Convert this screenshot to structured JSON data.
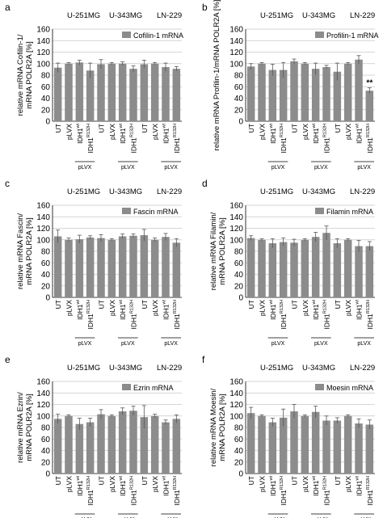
{
  "figure": {
    "cell_lines": [
      "U-251MG",
      "U-343MG",
      "LN-229"
    ],
    "group_label": "pLVX",
    "ylabel_line2": "mRNA POLR2A [%]",
    "categories": [
      {
        "main": "UT",
        "sup": ""
      },
      {
        "main": "pLVX",
        "sup": ""
      },
      {
        "main": "IDH1",
        "sup": "wt"
      },
      {
        "main": "IDH1",
        "sup": "R132H"
      }
    ],
    "bar_color": "#8c8c8c"
  },
  "chart_data": [
    {
      "panel": "a",
      "type": "bar",
      "legend": "Cofilin-1 mRNA",
      "ylabel": "relative mRNA Cofilin-1/",
      "ylim": [
        0,
        160
      ],
      "yticks": [
        0,
        20,
        40,
        60,
        80,
        100,
        120,
        140,
        160
      ],
      "series": [
        {
          "name": "Cofilin-1 mRNA",
          "values": [
            93,
            100,
            102,
            88,
            99,
            100,
            100,
            91,
            99,
            100,
            94,
            91
          ],
          "errors": [
            8,
            2,
            4,
            13,
            8,
            2,
            3,
            5,
            7,
            2,
            7,
            4
          ]
        }
      ],
      "annotations": []
    },
    {
      "panel": "b",
      "type": "bar",
      "legend": "Profilin-1 mRNA",
      "ylabel": "relative mRNA Profilin-1/mRNA POLR2A [%]",
      "ylim": [
        0,
        160
      ],
      "yticks": [
        0,
        20,
        40,
        60,
        80,
        100,
        120,
        140,
        160
      ],
      "series": [
        {
          "name": "Profilin-1 mRNA",
          "values": [
            95,
            100,
            89,
            89,
            104,
            100,
            91,
            94,
            86,
            100,
            107,
            53
          ],
          "errors": [
            5,
            2,
            10,
            13,
            4,
            2,
            10,
            3,
            15,
            2,
            7,
            5
          ]
        }
      ],
      "annotations": [
        {
          "text": "**",
          "index": 11
        }
      ]
    },
    {
      "panel": "c",
      "type": "bar",
      "legend": "Fascin mRNA",
      "ylabel": "relative mRNA Fascin/",
      "ylim": [
        0,
        160
      ],
      "yticks": [
        0,
        20,
        40,
        60,
        80,
        100,
        120,
        140,
        160
      ],
      "series": [
        {
          "name": "Fascin mRNA",
          "values": [
            106,
            100,
            101,
            104,
            103,
            100,
            106,
            107,
            108,
            100,
            105,
            95
          ],
          "errors": [
            11,
            3,
            7,
            3,
            6,
            2,
            4,
            3,
            10,
            3,
            6,
            7
          ]
        }
      ],
      "annotations": []
    },
    {
      "panel": "d",
      "type": "bar",
      "legend": "Filamin mRNA",
      "ylabel": "relative mRNA Filamin/",
      "ylim": [
        0,
        160
      ],
      "yticks": [
        0,
        20,
        40,
        60,
        80,
        100,
        120,
        140,
        160
      ],
      "series": [
        {
          "name": "Filamin mRNA",
          "values": [
            103,
            100,
            94,
            96,
            95,
            100,
            105,
            112,
            94,
            100,
            89,
            89
          ],
          "errors": [
            4,
            2,
            8,
            7,
            6,
            2,
            8,
            12,
            8,
            2,
            10,
            8
          ]
        }
      ],
      "annotations": []
    },
    {
      "panel": "e",
      "type": "bar",
      "legend": "Ezrin mRNA",
      "ylabel": "relative mRNA Ezrin/",
      "ylim": [
        0,
        160
      ],
      "yticks": [
        0,
        20,
        40,
        60,
        80,
        100,
        120,
        140,
        160
      ],
      "series": [
        {
          "name": "Ezrin mRNA",
          "values": [
            95,
            100,
            86,
            89,
            103,
            100,
            108,
            109,
            98,
            100,
            89,
            95
          ],
          "errors": [
            8,
            2,
            10,
            7,
            8,
            2,
            6,
            8,
            20,
            3,
            4,
            7
          ]
        }
      ],
      "annotations": []
    },
    {
      "panel": "f",
      "type": "bar",
      "legend": "Moesin mRNA",
      "ylabel": "relative mRNA Moesin/",
      "ylim": [
        0,
        160
      ],
      "yticks": [
        0,
        20,
        40,
        60,
        80,
        100,
        120,
        140,
        160
      ],
      "series": [
        {
          "name": "Moesin mRNA",
          "values": [
            105,
            100,
            89,
            97,
            108,
            100,
            107,
            92,
            92,
            100,
            87,
            85
          ],
          "errors": [
            10,
            2,
            7,
            15,
            12,
            2,
            10,
            8,
            5,
            2,
            8,
            8
          ]
        }
      ],
      "annotations": []
    }
  ]
}
